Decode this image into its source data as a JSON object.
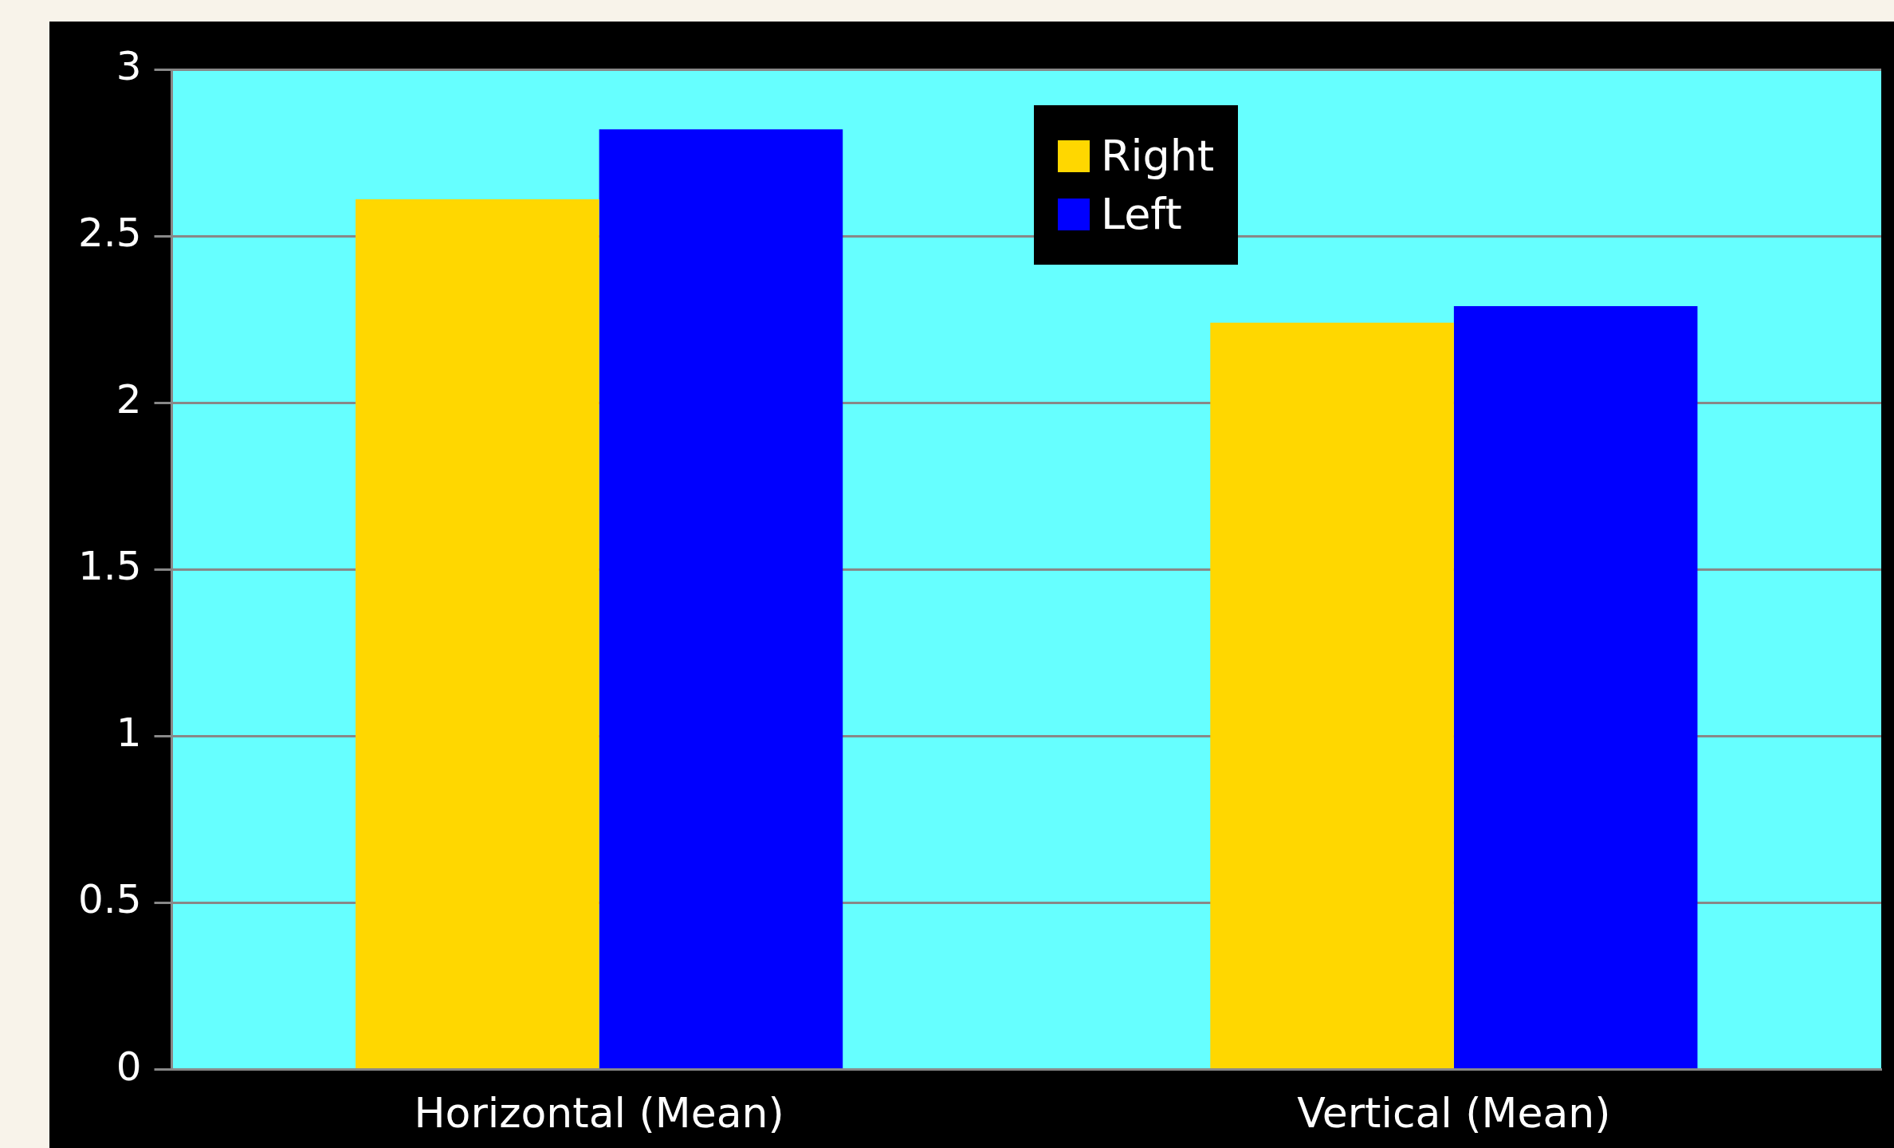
{
  "chart_data": {
    "type": "bar",
    "categories": [
      "Horizontal (Mean)",
      "Vertical (Mean)"
    ],
    "series": [
      {
        "name": "Right",
        "color": "#ffd700",
        "values": [
          2.61,
          2.24
        ]
      },
      {
        "name": "Left",
        "color": "#0000ff",
        "values": [
          2.82,
          2.29
        ]
      }
    ],
    "ylim": [
      0,
      3
    ],
    "yticks": [
      0,
      0.5,
      1,
      1.5,
      2,
      2.5,
      3
    ],
    "grid": "y",
    "legend": "top"
  }
}
